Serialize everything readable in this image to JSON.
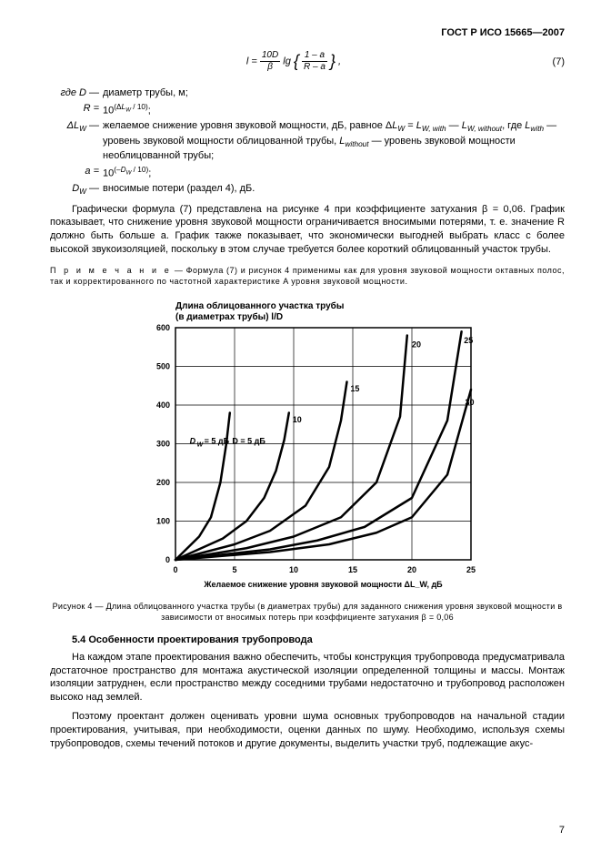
{
  "header": {
    "title": "ГОСТ Р ИСО 15665—2007"
  },
  "formula": {
    "lhs": "l = ",
    "frac_top": "10D",
    "frac_bot": "β",
    "middle": " lg",
    "inner_top": "1 – a",
    "inner_bot": "R – a",
    "trail": ",",
    "number": "(7)"
  },
  "defs": [
    {
      "sym": "где D —",
      "txt": "диаметр трубы, м;"
    },
    {
      "sym": "R =",
      "txt": "10^(ΔL_W / 10);"
    },
    {
      "sym": "ΔL_W —",
      "txt": "желаемое снижение уровня звуковой мощности, дБ, равное ΔL_W = L_{W, with} — L_{W, without}, где L_{with} — уровень звуковой мощности облицованной трубы, L_{without} — уровень звуковой мощности необлицованной трубы;"
    },
    {
      "sym": "a =",
      "txt": "10^(–D_W / 10);"
    },
    {
      "sym": "D_W —",
      "txt": "вносимые потери (раздел 4), дБ."
    }
  ],
  "para1": "Графически формула (7) представлена на рисунке 4 при коэффициенте затухания β = 0,06. График показывает, что снижение уровня звуковой мощности ограничивается вносимыми потерями, т. е. значение R должно быть больше a. График также показывает, что экономически выгодней выбрать класс с более высокой звукоизоляцией, поскольку в этом случае требуется более короткий облицованный участок трубы.",
  "note": {
    "lead": "П р и м е ч а н и е",
    "body": " — Формула (7) и рисунок 4 применимы как для уровня звуковой мощности октавных полос, так и корректированного по частотной характеристике A уровня звуковой мощности."
  },
  "chart": {
    "type": "line",
    "title_line1": "Длина облицованного участка трубы",
    "title_line2": "(в диаметрах трубы) l/D",
    "title_fontsize": 10,
    "xlabel": "Желаемое снижение уровня звуковой мощности ΔL_W, дБ",
    "ylim": [
      0,
      600
    ],
    "ytick_step": 100,
    "xlim": [
      0,
      25
    ],
    "xtick_step": 5,
    "background_color": "#ffffff",
    "grid_color": "#000000",
    "line_color": "#000000",
    "line_width_main": 2.5,
    "series": [
      {
        "label": "D_W = 5 дБ",
        "pts": [
          [
            0,
            0
          ],
          [
            2,
            60
          ],
          [
            3,
            110
          ],
          [
            3.8,
            200
          ],
          [
            4.3,
            300
          ],
          [
            4.6,
            380
          ]
        ],
        "lbl_pos": [
          4.8,
          300
        ]
      },
      {
        "label": "10",
        "pts": [
          [
            0,
            0
          ],
          [
            4,
            55
          ],
          [
            6,
            100
          ],
          [
            7.5,
            160
          ],
          [
            8.5,
            230
          ],
          [
            9.2,
            310
          ],
          [
            9.6,
            380
          ]
        ],
        "lbl_pos": [
          9.9,
          355
        ]
      },
      {
        "label": "15",
        "pts": [
          [
            0,
            0
          ],
          [
            5,
            40
          ],
          [
            8,
            75
          ],
          [
            11,
            140
          ],
          [
            13,
            240
          ],
          [
            14,
            360
          ],
          [
            14.5,
            460
          ]
        ],
        "lbl_pos": [
          14.8,
          435
        ]
      },
      {
        "label": "20",
        "pts": [
          [
            0,
            0
          ],
          [
            6,
            30
          ],
          [
            10,
            60
          ],
          [
            14,
            110
          ],
          [
            17,
            200
          ],
          [
            19,
            370
          ],
          [
            19.6,
            580
          ]
        ],
        "lbl_pos": [
          20,
          550
        ]
      },
      {
        "label": "25",
        "pts": [
          [
            0,
            0
          ],
          [
            8,
            27
          ],
          [
            12,
            50
          ],
          [
            16,
            85
          ],
          [
            20,
            160
          ],
          [
            23,
            360
          ],
          [
            24.2,
            590
          ]
        ],
        "lbl_pos": [
          24.4,
          560
        ]
      },
      {
        "label": "30",
        "pts": [
          [
            0,
            0
          ],
          [
            8,
            20
          ],
          [
            13,
            40
          ],
          [
            17,
            70
          ],
          [
            20,
            110
          ],
          [
            23,
            220
          ],
          [
            25,
            440
          ]
        ],
        "lbl_pos": [
          24.5,
          400
        ]
      }
    ]
  },
  "fig_caption": "Рисунок 4 — Длина облицованного участка трубы (в диаметрах трубы) для заданного снижения уровня звуковой мощности в зависимости от вносимых потерь при коэффициенте затухания β = 0,06",
  "section": {
    "head": "5.4 Особенности проектирования трубопровода",
    "p1": "На каждом этапе проектирования важно обеспечить, чтобы конструкция трубопровода предусматривала достаточное пространство для монтажа акустической изоляции определенной толщины и массы. Монтаж изоляции затруднен, если пространство между соседними трубами недостаточно и трубопровод расположен высоко над землей.",
    "p2": "Поэтому проектант должен оценивать уровни шума основных трубопроводов на начальной стадии проектирования, учитывая, при необходимости, оценки данных по шуму. Необходимо, используя схемы трубопроводов, схемы течений потоков и другие документы, выделить участки труб, подлежащие акус-"
  },
  "page_number": "7"
}
